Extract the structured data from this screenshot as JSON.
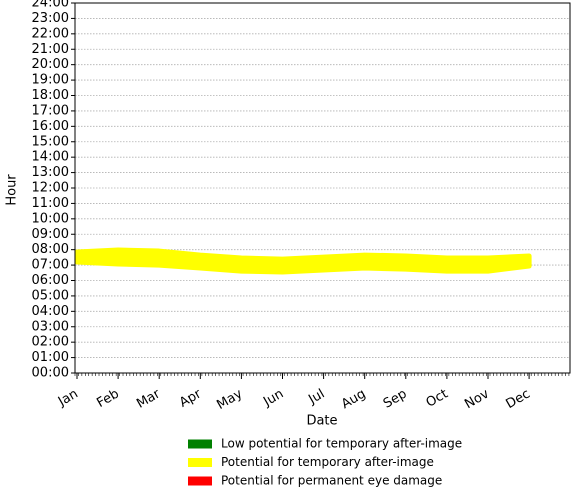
{
  "chart_data": {
    "type": "band",
    "x_label": "Date",
    "y_label": "Hour",
    "categories": [
      "Jan",
      "Feb",
      "Mar",
      "Apr",
      "May",
      "Jun",
      "Jul",
      "Aug",
      "Sep",
      "Oct",
      "Nov",
      "Dec"
    ],
    "series": [
      {
        "name": "Potential for temporary after-image",
        "color": "#ffff00",
        "upper": [
          7.85,
          7.98,
          7.91,
          7.65,
          7.46,
          7.39,
          7.52,
          7.65,
          7.59,
          7.46,
          7.46,
          7.59
        ],
        "lower": [
          7.2,
          7.07,
          7.0,
          6.81,
          6.61,
          6.55,
          6.68,
          6.81,
          6.74,
          6.61,
          6.61,
          6.94
        ]
      }
    ],
    "legend": [
      {
        "name": "Low potential for temporary after-image",
        "color": "#008000"
      },
      {
        "name": "Potential for temporary after-image",
        "color": "#ffff00"
      },
      {
        "name": "Potential for permanent eye damage",
        "color": "#ff0000"
      }
    ],
    "ylim": [
      0,
      24
    ],
    "yticks": [
      {
        "value": 0,
        "label": "00:00"
      },
      {
        "value": 1,
        "label": "01:00"
      },
      {
        "value": 2,
        "label": "02:00"
      },
      {
        "value": 3,
        "label": "03:00"
      },
      {
        "value": 4,
        "label": "04:00"
      },
      {
        "value": 5,
        "label": "05:00"
      },
      {
        "value": 6,
        "label": "06:00"
      },
      {
        "value": 7,
        "label": "07:00"
      },
      {
        "value": 8,
        "label": "08:00"
      },
      {
        "value": 9,
        "label": "09:00"
      },
      {
        "value": 10,
        "label": "10:00"
      },
      {
        "value": 11,
        "label": "11:00"
      },
      {
        "value": 12,
        "label": "12:00"
      },
      {
        "value": 13,
        "label": "13:00"
      },
      {
        "value": 14,
        "label": "14:00"
      },
      {
        "value": 15,
        "label": "15:00"
      },
      {
        "value": 16,
        "label": "16:00"
      },
      {
        "value": 17,
        "label": "17:00"
      },
      {
        "value": 18,
        "label": "18:00"
      },
      {
        "value": 19,
        "label": "19:00"
      },
      {
        "value": 20,
        "label": "20:00"
      },
      {
        "value": 21,
        "label": "21:00"
      },
      {
        "value": 22,
        "label": "22:00"
      },
      {
        "value": 23,
        "label": "23:00"
      },
      {
        "value": 24,
        "label": "24:00"
      }
    ],
    "grid": true
  }
}
